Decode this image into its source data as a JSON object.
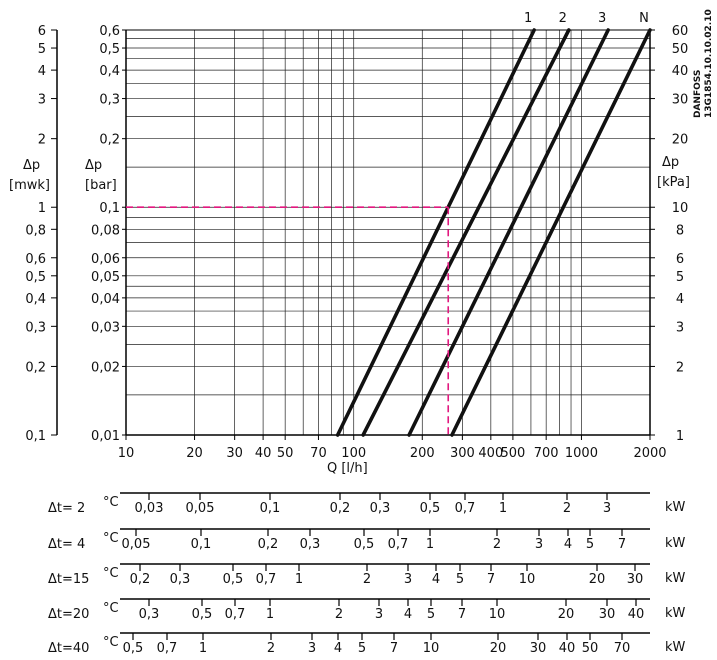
{
  "chart_data": {
    "type": "line",
    "scale": "log-log",
    "grid": true,
    "x_axis": {
      "label": "Q  [l/h]",
      "range": [
        10,
        2000
      ],
      "ticks": [
        10,
        20,
        30,
        40,
        50,
        70,
        100,
        200,
        300,
        400,
        500,
        700,
        1000,
        2000
      ],
      "tick_labels": [
        {
          "v": 10,
          "t": "10"
        },
        {
          "v": 20,
          "t": "20"
        },
        {
          "v": 30,
          "t": "30"
        },
        {
          "v": 40,
          "t": "40"
        },
        {
          "v": 50,
          "t": "50"
        },
        {
          "v": 70,
          "t": "70"
        },
        {
          "v": 100,
          "t": "100"
        },
        {
          "v": 200,
          "t": "200"
        },
        {
          "v": 300,
          "t": "300"
        },
        {
          "v": 400,
          "t": "400"
        },
        {
          "v": 500,
          "t": "500"
        },
        {
          "v": 700,
          "t": "700"
        },
        {
          "v": 1000,
          "t": "1000"
        },
        {
          "v": 2000,
          "t": "2000"
        }
      ]
    },
    "y_axis_bar": {
      "label": "Δp",
      "unit": "[bar]",
      "range": [
        0.01,
        0.6
      ],
      "ticks": [
        0.01,
        0.02,
        0.03,
        0.04,
        0.05,
        0.06,
        0.08,
        0.1,
        0.2,
        0.3,
        0.4,
        0.5,
        0.6
      ],
      "tick_labels": [
        {
          "v": 0.01,
          "t": "0,01"
        },
        {
          "v": 0.02,
          "t": "0,02"
        },
        {
          "v": 0.03,
          "t": "0,03"
        },
        {
          "v": 0.04,
          "t": "0,04"
        },
        {
          "v": 0.05,
          "t": "0,05"
        },
        {
          "v": 0.06,
          "t": "0,06"
        },
        {
          "v": 0.08,
          "t": "0,08"
        },
        {
          "v": 0.1,
          "t": "0,1"
        },
        {
          "v": 0.2,
          "t": "0,2"
        },
        {
          "v": 0.3,
          "t": "0,3"
        },
        {
          "v": 0.4,
          "t": "0,4"
        },
        {
          "v": 0.5,
          "t": "0,5"
        },
        {
          "v": 0.6,
          "t": "0,6"
        }
      ]
    },
    "y_axis_mwk": {
      "label": "Δp",
      "unit": "[mwk]",
      "tick_labels": [
        {
          "v": 0.01,
          "t": "0,1"
        },
        {
          "v": 0.02,
          "t": "0,2"
        },
        {
          "v": 0.03,
          "t": "0,3"
        },
        {
          "v": 0.04,
          "t": "0,4"
        },
        {
          "v": 0.05,
          "t": "0,5"
        },
        {
          "v": 0.06,
          "t": "0,6"
        },
        {
          "v": 0.08,
          "t": "0,8"
        },
        {
          "v": 0.1,
          "t": "1"
        },
        {
          "v": 0.2,
          "t": "2"
        },
        {
          "v": 0.3,
          "t": "3"
        },
        {
          "v": 0.4,
          "t": "4"
        },
        {
          "v": 0.5,
          "t": "5"
        },
        {
          "v": 0.6,
          "t": "6"
        }
      ]
    },
    "y_axis_kpa": {
      "label": "Δp",
      "unit": "[kPa]",
      "tick_labels": [
        {
          "v": 0.01,
          "t": "1"
        },
        {
          "v": 0.02,
          "t": "2"
        },
        {
          "v": 0.03,
          "t": "3"
        },
        {
          "v": 0.04,
          "t": "4"
        },
        {
          "v": 0.05,
          "t": "5"
        },
        {
          "v": 0.06,
          "t": "6"
        },
        {
          "v": 0.08,
          "t": "8"
        },
        {
          "v": 0.1,
          "t": "10"
        },
        {
          "v": 0.2,
          "t": "20"
        },
        {
          "v": 0.3,
          "t": "30"
        },
        {
          "v": 0.4,
          "t": "40"
        },
        {
          "v": 0.5,
          "t": "50"
        },
        {
          "v": 0.6,
          "t": "60"
        }
      ]
    },
    "series": [
      {
        "name": "1",
        "points": [
          [
            85,
            0.01
          ],
          [
            620,
            0.6
          ]
        ]
      },
      {
        "name": "2",
        "points": [
          [
            110,
            0.01
          ],
          [
            880,
            0.6
          ]
        ]
      },
      {
        "name": "3",
        "points": [
          [
            175,
            0.01
          ],
          [
            1310,
            0.6
          ]
        ]
      },
      {
        "name": "N",
        "points": [
          [
            270,
            0.01
          ],
          [
            2000,
            0.6
          ]
        ]
      }
    ],
    "example_line": {
      "color": "#e2187f",
      "x": 260,
      "y": 0.1
    },
    "vendor_mark": {
      "line1": "DANFOSS",
      "line2": "13G1854.10.10.02.10"
    },
    "power_scales": [
      {
        "dt_label": "Δt=  2",
        "unit_suffix": "°C",
        "unit": "kW",
        "ticks": [
          {
            "x": 149,
            "t": "0,03"
          },
          {
            "x": 200,
            "t": "0,05"
          },
          {
            "x": 270,
            "t": "0,1"
          },
          {
            "x": 340,
            "t": "0,2"
          },
          {
            "x": 380,
            "t": "0,3"
          },
          {
            "x": 430,
            "t": "0,5"
          },
          {
            "x": 465,
            "t": "0,7"
          },
          {
            "x": 503,
            "t": "1"
          },
          {
            "x": 567,
            "t": "2"
          },
          {
            "x": 607,
            "t": "3"
          }
        ]
      },
      {
        "dt_label": "Δt=  4",
        "unit_suffix": "°C",
        "unit": "kW",
        "ticks": [
          {
            "x": 136,
            "t": "0,05"
          },
          {
            "x": 201,
            "t": "0,1"
          },
          {
            "x": 268,
            "t": "0,2"
          },
          {
            "x": 310,
            "t": "0,3"
          },
          {
            "x": 364,
            "t": "0,5"
          },
          {
            "x": 398,
            "t": "0,7"
          },
          {
            "x": 430,
            "t": "1"
          },
          {
            "x": 497,
            "t": "2"
          },
          {
            "x": 539,
            "t": "3"
          },
          {
            "x": 568,
            "t": "4"
          },
          {
            "x": 590,
            "t": "5"
          },
          {
            "x": 622,
            "t": "7"
          }
        ]
      },
      {
        "dt_label": "Δt=15",
        "unit_suffix": "°C",
        "unit": "kW",
        "ticks": [
          {
            "x": 140,
            "t": "0,2"
          },
          {
            "x": 180,
            "t": "0,3"
          },
          {
            "x": 233,
            "t": "0,5"
          },
          {
            "x": 266,
            "t": "0,7"
          },
          {
            "x": 299,
            "t": "1"
          },
          {
            "x": 367,
            "t": "2"
          },
          {
            "x": 408,
            "t": "3"
          },
          {
            "x": 436,
            "t": "4"
          },
          {
            "x": 460,
            "t": "5"
          },
          {
            "x": 491,
            "t": "7"
          },
          {
            "x": 527,
            "t": "10"
          },
          {
            "x": 597,
            "t": "20"
          },
          {
            "x": 635,
            "t": "30"
          }
        ]
      },
      {
        "dt_label": "Δt=20",
        "unit_suffix": "°C",
        "unit": "kW",
        "ticks": [
          {
            "x": 149,
            "t": "0,3"
          },
          {
            "x": 202,
            "t": "0,5"
          },
          {
            "x": 235,
            "t": "0,7"
          },
          {
            "x": 270,
            "t": "1"
          },
          {
            "x": 339,
            "t": "2"
          },
          {
            "x": 379,
            "t": "3"
          },
          {
            "x": 408,
            "t": "4"
          },
          {
            "x": 431,
            "t": "5"
          },
          {
            "x": 462,
            "t": "7"
          },
          {
            "x": 497,
            "t": "10"
          },
          {
            "x": 566,
            "t": "20"
          },
          {
            "x": 607,
            "t": "30"
          },
          {
            "x": 636,
            "t": "40"
          }
        ]
      },
      {
        "dt_label": "Δt=40",
        "unit_suffix": "°C",
        "unit": "kW",
        "ticks": [
          {
            "x": 133,
            "t": "0,5"
          },
          {
            "x": 167,
            "t": "0,7"
          },
          {
            "x": 203,
            "t": "1"
          },
          {
            "x": 271,
            "t": "2"
          },
          {
            "x": 312,
            "t": "3"
          },
          {
            "x": 338,
            "t": "4"
          },
          {
            "x": 362,
            "t": "5"
          },
          {
            "x": 394,
            "t": "7"
          },
          {
            "x": 431,
            "t": "10"
          },
          {
            "x": 498,
            "t": "20"
          },
          {
            "x": 538,
            "t": "30"
          },
          {
            "x": 567,
            "t": "40"
          },
          {
            "x": 590,
            "t": "50"
          },
          {
            "x": 622,
            "t": "70"
          }
        ]
      }
    ]
  }
}
